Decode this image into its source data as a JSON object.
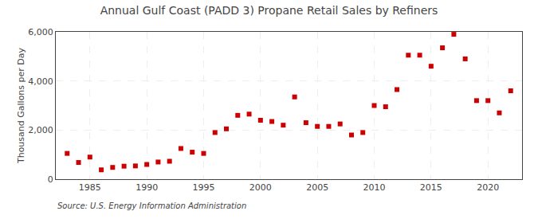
{
  "chart_data": {
    "type": "scatter",
    "title": "Annual Gulf Coast (PADD 3) Propane Retail Sales by Refiners",
    "ylabel": "Thousand Gallons per Day",
    "annotations": [
      "Source: U.S. Energy Information Administration"
    ],
    "x": [
      1983,
      1984,
      1985,
      1986,
      1987,
      1988,
      1989,
      1990,
      1991,
      1992,
      1993,
      1994,
      1995,
      1996,
      1997,
      1998,
      1999,
      2000,
      2001,
      2002,
      2003,
      2004,
      2005,
      2006,
      2007,
      2008,
      2009,
      2010,
      2011,
      2012,
      2013,
      2014,
      2015,
      2016,
      2017,
      2018,
      2019,
      2020,
      2021,
      2022
    ],
    "values": [
      1050,
      680,
      900,
      380,
      480,
      530,
      540,
      600,
      700,
      730,
      1250,
      1100,
      1050,
      1900,
      2050,
      2600,
      2650,
      2400,
      2350,
      2200,
      3350,
      2300,
      2150,
      2150,
      2250,
      1800,
      1900,
      3000,
      2950,
      3650,
      5050,
      5050,
      4600,
      5350,
      5900,
      4900,
      3200,
      3200,
      2700,
      3600
    ],
    "color": "#cc0000",
    "marker": "square",
    "xlim": [
      1982,
      2023
    ],
    "xticks": [
      1985,
      1990,
      1995,
      2000,
      2005,
      2010,
      2015,
      2020
    ],
    "ylim": [
      0,
      6000
    ],
    "yticks": [
      0,
      {
        "value": 2000,
        "label": "2,000"
      },
      {
        "value": 4000,
        "label": "4,000"
      },
      {
        "value": 6000,
        "label": "6,000"
      }
    ],
    "grid": true
  }
}
